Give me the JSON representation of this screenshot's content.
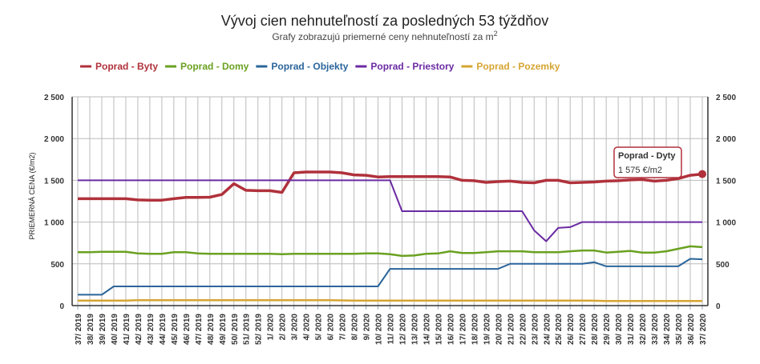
{
  "chart_data": {
    "type": "line",
    "title": "Vývoj cien nehnuteľností za posledných 53 týždňov",
    "subtitle": "Grafy zobrazujú priemerné ceny nehnuteľností za m",
    "subtitle_sup": "2",
    "ylabel": "PRIEMERNÁ CENA (€/m2)",
    "xlabel": "",
    "ylim": [
      0,
      2500
    ],
    "yticks": [
      "0",
      "500",
      "1 000",
      "1 500",
      "2 000",
      "2 500"
    ],
    "ytick_values": [
      0,
      500,
      1000,
      1500,
      2000,
      2500
    ],
    "grid": true,
    "legend_position": "top-left",
    "x": [
      "37/ 2019",
      "38/ 2019",
      "39/ 2019",
      "40/ 2019",
      "41/ 2019",
      "42/ 2019",
      "43/ 2019",
      "44/ 2019",
      "45/ 2019",
      "46/ 2019",
      "47/ 2019",
      "48/ 2019",
      "49/ 2019",
      "50/ 2019",
      "51/ 2019",
      "52/ 2019",
      "1/ 2020",
      "2/ 2020",
      "3/ 2020",
      "4/ 2020",
      "5/ 2020",
      "6/ 2020",
      "7/ 2020",
      "8/ 2020",
      "9/ 2020",
      "10/ 2020",
      "11/ 2020",
      "12/ 2020",
      "13/ 2020",
      "14/ 2020",
      "15/ 2020",
      "16/ 2020",
      "17/ 2020",
      "18/ 2020",
      "19/ 2020",
      "20/ 2020",
      "21/ 2020",
      "22/ 2020",
      "23/ 2020",
      "24/ 2020",
      "25/ 2020",
      "26/ 2020",
      "27/ 2020",
      "28/ 2020",
      "29/ 2020",
      "30/ 2020",
      "31/ 2020",
      "32/ 2020",
      "33/ 2020",
      "34/ 2020",
      "35/ 2020",
      "36/ 2020",
      "37/ 2020"
    ],
    "series": [
      {
        "name": "Poprad - Byty",
        "color": "#b0313b",
        "width": 3.5,
        "values": [
          1280,
          1280,
          1280,
          1280,
          1280,
          1265,
          1262,
          1262,
          1280,
          1295,
          1295,
          1298,
          1330,
          1460,
          1380,
          1375,
          1375,
          1355,
          1590,
          1600,
          1600,
          1600,
          1590,
          1565,
          1560,
          1540,
          1545,
          1545,
          1545,
          1545,
          1545,
          1540,
          1500,
          1495,
          1475,
          1485,
          1490,
          1475,
          1470,
          1500,
          1500,
          1470,
          1475,
          1480,
          1490,
          1495,
          1505,
          1510,
          1490,
          1500,
          1520,
          1560,
          1575
        ]
      },
      {
        "name": "Poprad - Domy",
        "color": "#6aa121",
        "width": 2.5,
        "values": [
          640,
          640,
          645,
          645,
          645,
          625,
          620,
          620,
          640,
          640,
          625,
          620,
          620,
          620,
          620,
          620,
          620,
          615,
          620,
          620,
          620,
          620,
          620,
          620,
          625,
          625,
          615,
          595,
          600,
          620,
          625,
          650,
          630,
          630,
          640,
          650,
          650,
          650,
          640,
          640,
          640,
          650,
          660,
          660,
          635,
          645,
          655,
          635,
          635,
          650,
          680,
          710,
          700
        ]
      },
      {
        "name": "Poprad - Objekty",
        "color": "#2b659b",
        "width": 2,
        "values": [
          130,
          130,
          130,
          230,
          230,
          230,
          230,
          230,
          230,
          230,
          230,
          230,
          230,
          230,
          230,
          230,
          230,
          230,
          230,
          230,
          230,
          230,
          230,
          230,
          230,
          230,
          440,
          440,
          440,
          440,
          440,
          440,
          440,
          440,
          440,
          440,
          500,
          500,
          500,
          500,
          500,
          500,
          500,
          520,
          470,
          470,
          470,
          470,
          470,
          470,
          470,
          560,
          555
        ]
      },
      {
        "name": "Poprad - Priestory",
        "color": "#6a2aa3",
        "width": 2,
        "values": [
          1500,
          1500,
          1500,
          1500,
          1500,
          1500,
          1500,
          1500,
          1500,
          1500,
          1500,
          1500,
          1500,
          1500,
          1500,
          1500,
          1500,
          1500,
          1500,
          1500,
          1500,
          1500,
          1500,
          1500,
          1500,
          1500,
          1500,
          1130,
          1130,
          1130,
          1130,
          1130,
          1130,
          1130,
          1130,
          1130,
          1130,
          1130,
          900,
          770,
          930,
          940,
          1000,
          1000,
          1000,
          1000,
          1000,
          1000,
          1000,
          1000,
          1000,
          1000,
          1000
        ]
      },
      {
        "name": "Poprad - Pozemky",
        "color": "#d6a532",
        "width": 2.5,
        "values": [
          60,
          60,
          60,
          60,
          60,
          65,
          65,
          65,
          65,
          65,
          65,
          65,
          65,
          65,
          65,
          65,
          65,
          65,
          65,
          65,
          65,
          65,
          62,
          60,
          60,
          60,
          60,
          60,
          60,
          60,
          60,
          60,
          60,
          60,
          60,
          60,
          60,
          60,
          60,
          60,
          60,
          60,
          60,
          58,
          55,
          55,
          55,
          55,
          55,
          55,
          55,
          55,
          55
        ]
      }
    ],
    "tooltip": {
      "series": "Poprad - Dyty",
      "value": "1 575 €/m2",
      "color": "#b0313b"
    }
  }
}
